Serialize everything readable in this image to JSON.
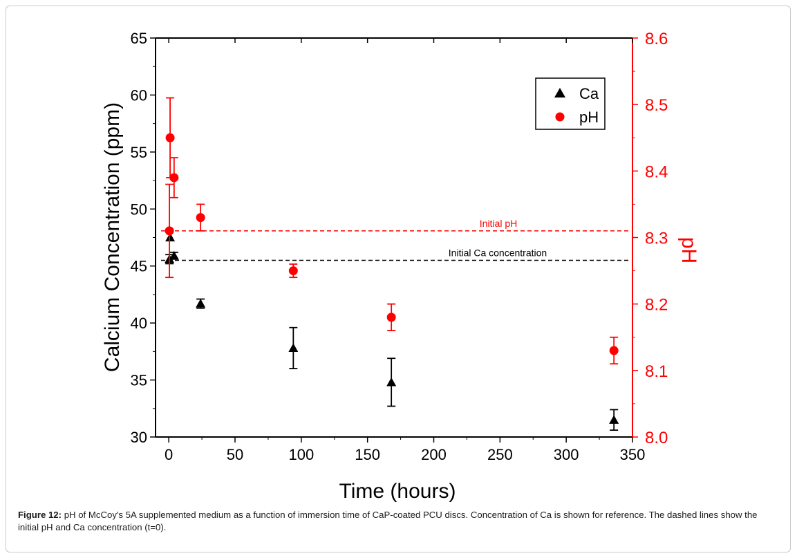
{
  "chart_data": {
    "type": "scatter",
    "xlabel": "Time (hours)",
    "ylabel_left": "Calcium Concentration (ppm)",
    "ylabel_right": "pH",
    "xlim": [
      -10,
      350
    ],
    "ylim_left": [
      30,
      65
    ],
    "ylim_right": [
      8.0,
      8.6
    ],
    "x_ticks": [
      0,
      50,
      100,
      150,
      200,
      250,
      300,
      350
    ],
    "y_left_ticks": [
      30,
      35,
      40,
      45,
      50,
      55,
      60,
      65
    ],
    "y_right_ticks": [
      "8.0",
      "8.1",
      "8.2",
      "8.3",
      "8.4",
      "8.5",
      "8.6"
    ],
    "series": [
      {
        "name": "Ca",
        "axis": "left",
        "marker": "triangle",
        "color": "#000000",
        "points": [
          {
            "x": 0.5,
            "y": 45.6,
            "err": 0.4
          },
          {
            "x": 1,
            "y": 47.5,
            "err": 0
          },
          {
            "x": 4,
            "y": 45.9,
            "err": 0.3
          },
          {
            "x": 24,
            "y": 41.7,
            "err": 0.4
          },
          {
            "x": 94,
            "y": 37.8,
            "err": 1.8
          },
          {
            "x": 168,
            "y": 34.8,
            "err": 2.1
          },
          {
            "x": 336,
            "y": 31.5,
            "err": 0.9
          }
        ]
      },
      {
        "name": "pH",
        "axis": "right",
        "marker": "circle",
        "color": "#ff0000",
        "points": [
          {
            "x": 0.5,
            "y": 8.31,
            "err": 0.07
          },
          {
            "x": 1,
            "y": 8.45,
            "err": 0.06
          },
          {
            "x": 4,
            "y": 8.39,
            "err": 0.03
          },
          {
            "x": 24,
            "y": 8.33,
            "err": 0.02
          },
          {
            "x": 94,
            "y": 8.25,
            "err": 0.01
          },
          {
            "x": 168,
            "y": 8.18,
            "err": 0.02
          },
          {
            "x": 336,
            "y": 8.13,
            "err": 0.02
          }
        ]
      }
    ],
    "reference_lines": [
      {
        "label": "Initial pH",
        "axis": "right",
        "y": 8.31,
        "color": "#ff0000"
      },
      {
        "label": "Initial Ca concentration",
        "axis": "left",
        "y": 45.5,
        "color": "#000000"
      }
    ],
    "legend": {
      "position": "top-right",
      "entries": [
        "Ca",
        "pH"
      ]
    },
    "grid": false
  },
  "caption": {
    "label": "Figure 12:",
    "text": " pH of McCoy's 5A supplemented medium as a function of immersion time of CaP-coated PCU discs. Concentration of Ca is shown for reference. The dashed lines show the initial pH and Ca concentration (t=0)."
  }
}
